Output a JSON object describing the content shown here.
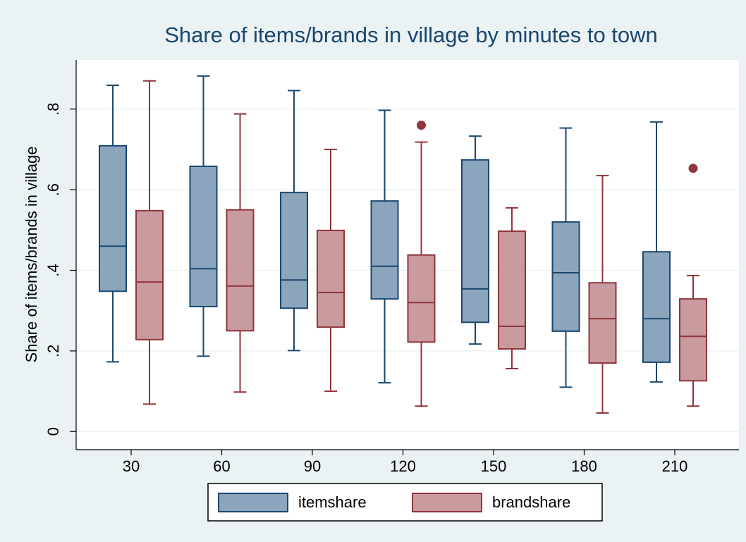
{
  "chart_data": {
    "type": "box",
    "title": "Share of items/brands in village by minutes to town",
    "y_label": "Share of items/brands in village",
    "categories": [
      "30",
      "60",
      "90",
      "120",
      "150",
      "180",
      "210"
    ],
    "ylim": [
      -0.045,
      0.922
    ],
    "yticks": [
      0,
      {
        "value": 0.2,
        "label": ".2"
      },
      {
        "value": 0.4,
        "label": ".4"
      },
      {
        "value": 0.6,
        "label": ".6"
      },
      {
        "value": 0.8,
        "label": ".8"
      }
    ],
    "grid": true,
    "legend": "bottom",
    "series": [
      {
        "name": "itemshare",
        "color": "#8ba5bd",
        "edge_color": "#1a476f",
        "lower": [
          0.173,
          0.187,
          0.201,
          0.121,
          0.217,
          0.11,
          0.123
        ],
        "q1": [
          0.348,
          0.31,
          0.306,
          0.329,
          0.271,
          0.249,
          0.172
        ],
        "median": [
          0.46,
          0.404,
          0.376,
          0.41,
          0.354,
          0.394,
          0.28
        ],
        "q3": [
          0.709,
          0.658,
          0.593,
          0.572,
          0.674,
          0.52,
          0.446
        ],
        "upper": [
          0.859,
          0.882,
          0.846,
          0.797,
          0.733,
          0.753,
          0.768
        ],
        "outliers": [
          [],
          [],
          [],
          [],
          [],
          [],
          []
        ]
      },
      {
        "name": "brandshare",
        "color": "#c99a9e",
        "edge_color": "#90353b",
        "lower": [
          0.068,
          0.098,
          0.1,
          0.063,
          0.156,
          0.046,
          0.063
        ],
        "q1": [
          0.228,
          0.25,
          0.259,
          0.222,
          0.205,
          0.17,
          0.126
        ],
        "median": [
          0.371,
          0.361,
          0.345,
          0.32,
          0.261,
          0.28,
          0.236
        ],
        "q3": [
          0.548,
          0.55,
          0.499,
          0.438,
          0.497,
          0.369,
          0.329
        ],
        "upper": [
          0.87,
          0.788,
          0.7,
          0.718,
          0.555,
          0.635,
          0.387
        ],
        "outliers": [
          [],
          [],
          [],
          [
            0.76
          ],
          [],
          [],
          [
            0.653
          ]
        ]
      }
    ]
  }
}
